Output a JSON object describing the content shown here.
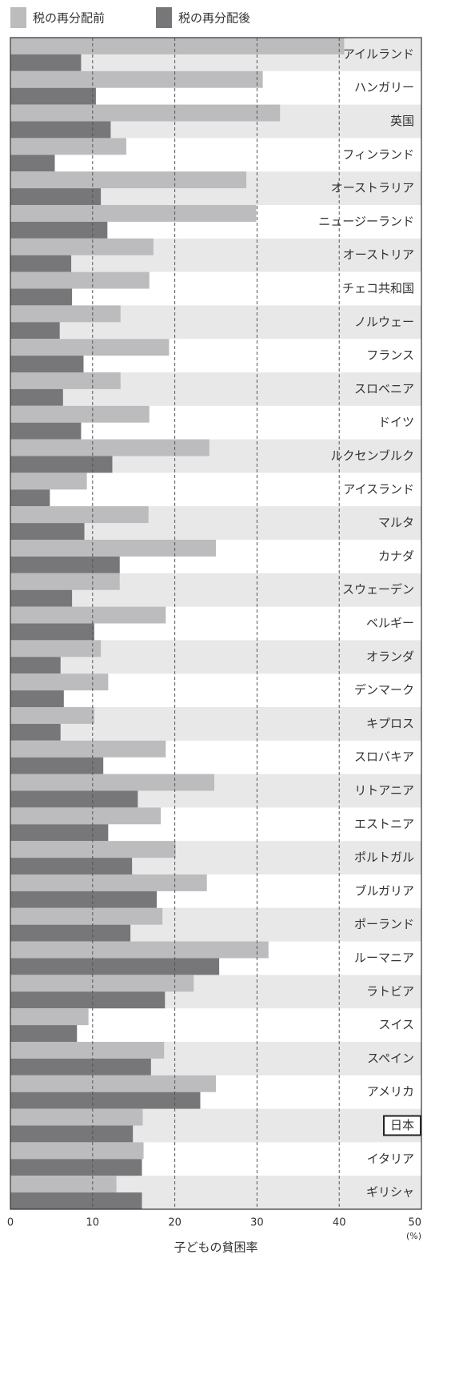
{
  "chart_data": {
    "type": "bar",
    "orientation": "horizontal",
    "categories": [
      "アイルランド",
      "ハンガリー",
      "英国",
      "フィンランド",
      "オーストラリア",
      "ニュージーランド",
      "オーストリア",
      "チェコ共和国",
      "ノルウェー",
      "フランス",
      "スロベニア",
      "ドイツ",
      "ルクセンブルク",
      "アイスランド",
      "マルタ",
      "カナダ",
      "スウェーデン",
      "ベルギー",
      "オランダ",
      "デンマーク",
      "キプロス",
      "スロバキア",
      "リトアニア",
      "エストニア",
      "ポルトガル",
      "ブルガリア",
      "ポーランド",
      "ルーマニア",
      "ラトビア",
      "スイス",
      "スペイン",
      "アメリカ",
      "日本",
      "イタリア",
      "ギリシャ"
    ],
    "series": [
      {
        "name": "税の再分配前",
        "color": "#bcbcbe",
        "values": [
          40.6,
          30.7,
          32.8,
          14.1,
          28.7,
          29.9,
          17.4,
          16.9,
          13.4,
          19.3,
          13.4,
          16.9,
          24.2,
          9.3,
          16.8,
          25.0,
          13.3,
          18.9,
          11.0,
          11.9,
          10.2,
          18.9,
          24.8,
          18.3,
          20.1,
          23.9,
          18.5,
          31.4,
          22.3,
          9.5,
          18.7,
          25.0,
          16.1,
          16.2,
          12.9
        ]
      },
      {
        "name": "税の再分配後",
        "color": "#77777a",
        "values": [
          8.6,
          10.4,
          12.2,
          5.4,
          11.0,
          11.8,
          7.4,
          7.5,
          6.0,
          8.9,
          6.4,
          8.6,
          12.4,
          4.8,
          9.0,
          13.3,
          7.5,
          10.2,
          6.1,
          6.5,
          6.1,
          11.3,
          15.5,
          11.9,
          14.8,
          17.8,
          14.6,
          25.4,
          18.8,
          8.1,
          17.1,
          23.1,
          14.9,
          16.0,
          16.0
        ]
      }
    ],
    "xlim": [
      0,
      50
    ],
    "xticks": [
      0,
      10,
      20,
      30,
      40,
      50
    ],
    "x_unit": "(%)",
    "x_label": "子どもの貧困率",
    "grid": true,
    "legend": "top",
    "highlight": "日本"
  }
}
